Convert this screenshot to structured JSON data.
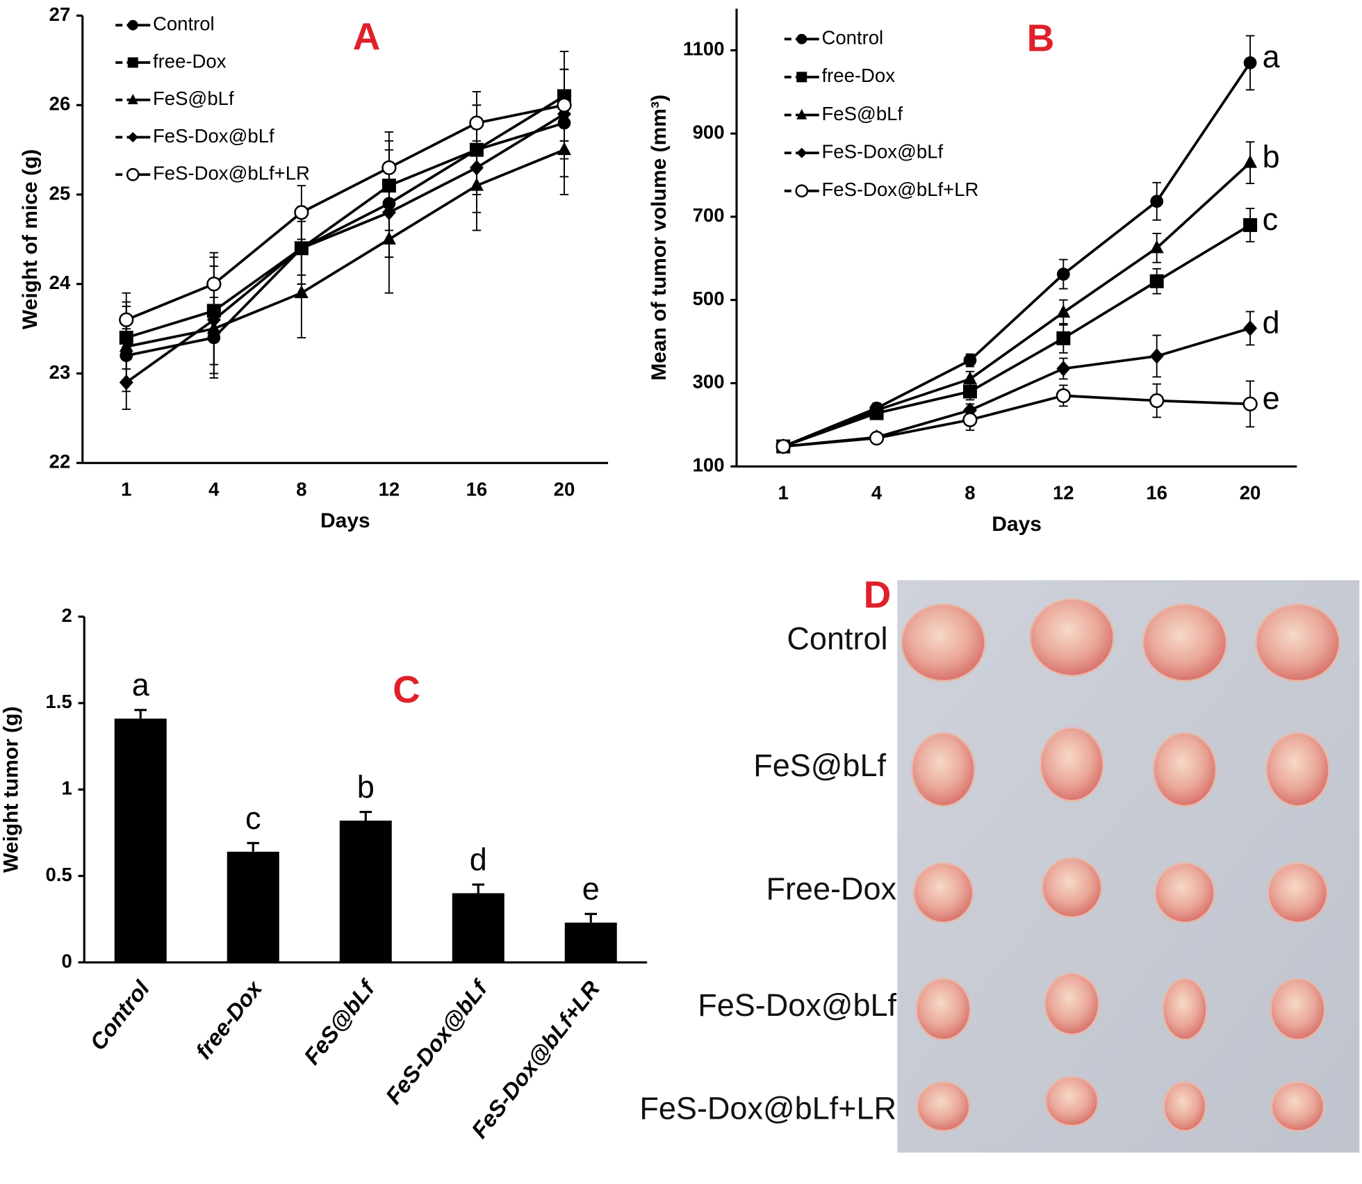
{
  "chart_data": [
    {
      "type": "line",
      "panel_label": "A",
      "ylabel": "Weight of mice (g)",
      "xlabel": "Days",
      "categories": [
        "1",
        "4",
        "8",
        "12",
        "16",
        "20"
      ],
      "ylim": [
        22,
        27
      ],
      "yticks": [
        22,
        23,
        24,
        25,
        26,
        27
      ],
      "series": [
        {
          "name": "Control",
          "color": "#000",
          "marker": "circle",
          "values": [
            23.2,
            23.4,
            24.4,
            24.9,
            25.5,
            25.8
          ],
          "errors": [
            0.3,
            0.45,
            0.4,
            0.6,
            0.5,
            0.6
          ]
        },
        {
          "name": "free-Dox",
          "color": "#000",
          "marker": "square",
          "values": [
            23.4,
            23.7,
            24.4,
            25.1,
            25.5,
            26.1
          ],
          "errors": [
            0.35,
            0.6,
            0.3,
            0.5,
            0.5,
            0.5
          ]
        },
        {
          "name": "FeS@bLf",
          "color": "#000",
          "marker": "triangle",
          "values": [
            23.3,
            23.5,
            23.9,
            24.5,
            25.1,
            25.5
          ],
          "errors": [
            0.5,
            0.5,
            0.5,
            0.6,
            0.5,
            0.5
          ]
        },
        {
          "name": "FeS-Dox@bLf",
          "color": "#000",
          "marker": "diamond",
          "values": [
            22.9,
            23.6,
            24.4,
            24.8,
            25.3,
            25.9
          ],
          "errors": [
            0.3,
            0.6,
            0.4,
            0.5,
            0.5,
            0.5
          ]
        },
        {
          "name": "FeS-Dox@bLf+LR",
          "color": "#000",
          "marker": "circle-open",
          "values": [
            23.6,
            24.0,
            24.8,
            25.3,
            25.8,
            26.0
          ],
          "errors": [
            0.3,
            0.35,
            0.3,
            0.4,
            0.35,
            0.4
          ]
        }
      ]
    },
    {
      "type": "line",
      "panel_label": "B",
      "ylabel": "Mean of tumor volume (mm³)",
      "xlabel": "Days",
      "categories": [
        "1",
        "4",
        "8",
        "12",
        "16",
        "20"
      ],
      "ylim": [
        100,
        1200
      ],
      "yticks": [
        100,
        300,
        500,
        700,
        900,
        1100
      ],
      "series": [
        {
          "name": "Control",
          "color": "#000",
          "marker": "circle",
          "group_label": "a",
          "values": [
            148,
            240,
            355,
            562,
            737,
            1070
          ],
          "errors": [
            10,
            12,
            15,
            35,
            45,
            65
          ]
        },
        {
          "name": "free-Dox",
          "color": "#000",
          "marker": "square",
          "group_label": "c",
          "values": [
            148,
            228,
            280,
            408,
            545,
            680
          ],
          "errors": [
            10,
            12,
            20,
            35,
            30,
            40
          ]
        },
        {
          "name": "FeS@bLf",
          "color": "#000",
          "marker": "triangle",
          "group_label": "b",
          "values": [
            148,
            235,
            310,
            470,
            625,
            830
          ],
          "errors": [
            10,
            12,
            18,
            30,
            35,
            50
          ]
        },
        {
          "name": "FeS-Dox@bLf",
          "color": "#000",
          "marker": "diamond",
          "group_label": "d",
          "values": [
            148,
            170,
            235,
            335,
            365,
            432
          ],
          "errors": [
            10,
            10,
            15,
            25,
            50,
            40
          ]
        },
        {
          "name": "FeS-Dox@bLf+LR",
          "color": "#000",
          "marker": "circle-open",
          "group_label": "e",
          "values": [
            148,
            168,
            212,
            270,
            258,
            250
          ],
          "errors": [
            10,
            10,
            25,
            25,
            40,
            55
          ]
        }
      ]
    },
    {
      "type": "bar",
      "panel_label": "C",
      "ylabel": "Weight tumor (g)",
      "color": "#000",
      "categories": [
        "Control",
        "free-Dox",
        "FeS@bLf",
        "FeS-Dox@bLf",
        "FeS-Dox@bLf+LR"
      ],
      "values": [
        1.41,
        0.64,
        0.82,
        0.4,
        0.23
      ],
      "errors": [
        0.05,
        0.05,
        0.05,
        0.05,
        0.05
      ],
      "group_labels": [
        "a",
        "c",
        "b",
        "d",
        "e"
      ],
      "ylim": [
        0,
        2
      ],
      "yticks": [
        0,
        0.5,
        1,
        1.5,
        2
      ]
    }
  ],
  "photo_panel": {
    "label": "D",
    "rows": [
      "Control",
      "FeS@bLf",
      "Free-Dox",
      "FeS-Dox@bLf",
      "FeS-Dox@bLf+LR"
    ]
  }
}
